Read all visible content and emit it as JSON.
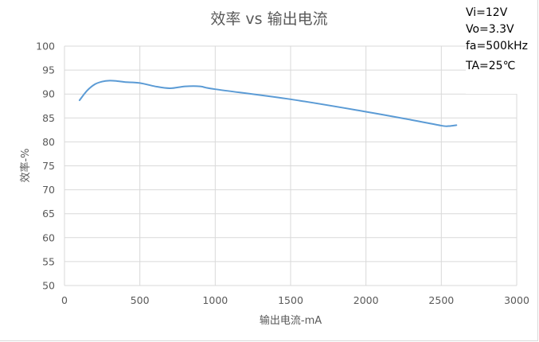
{
  "chart_data": {
    "type": "line",
    "title": "效率 vs 输出电流",
    "xlabel": "输出电流-mA",
    "ylabel": "效率-%",
    "xlim": [
      0,
      3000
    ],
    "ylim": [
      50,
      100
    ],
    "x_ticks": [
      "0",
      "500",
      "1000",
      "1500",
      "2000",
      "2500",
      "3000"
    ],
    "y_ticks": [
      "50",
      "55",
      "60",
      "65",
      "70",
      "75",
      "80",
      "85",
      "90",
      "95",
      "100"
    ],
    "grid": true,
    "series": [
      {
        "color": "#5b9bd5",
        "x": [
          100,
          150,
          200,
          250,
          300,
          350,
          400,
          500,
          600,
          700,
          800,
          900,
          1000,
          1500,
          2000,
          2300,
          2500,
          2550,
          2600
        ],
        "y": [
          88.7,
          90.7,
          92.0,
          92.6,
          92.8,
          92.7,
          92.5,
          92.3,
          91.6,
          91.2,
          91.6,
          91.6,
          91.0,
          88.9,
          86.3,
          84.6,
          83.4,
          83.3,
          83.5
        ]
      }
    ]
  },
  "conditions": [
    "Vi=12V",
    "Vo=3.3V",
    "fa=500kHz",
    "TA=25℃"
  ]
}
